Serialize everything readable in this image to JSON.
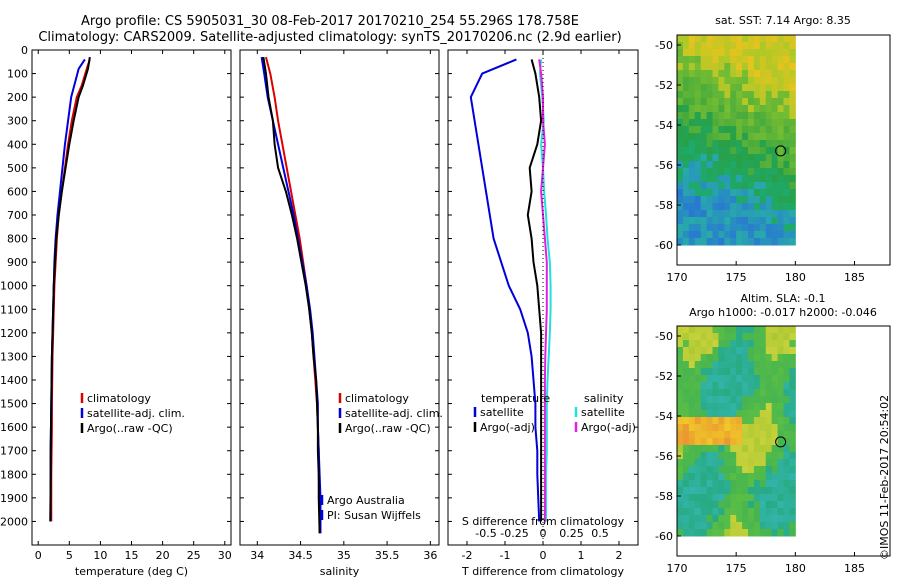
{
  "header": {
    "title_line1": "Argo profile: CS 5905031_30 08-Feb-2017 20170210_254 55.296S 178.758E",
    "title_line2": "Climatology: CARS2009. Satellite-adjusted climatology: synTS_20170206.nc (2.9d earlier)"
  },
  "credit": "©IMOS 11-Feb-2017 20:54:02",
  "colors": {
    "climatology": "#dd0000",
    "satellite": "#0000dd",
    "argo": "#000000",
    "sal_satellite": "#22e0e0",
    "sal_argo": "#e020e0"
  },
  "chart_data": [
    {
      "type": "line",
      "id": "temperature_profile",
      "xlabel": "temperature (deg C)",
      "xlim": [
        -1,
        31
      ],
      "xticks": [
        0,
        5,
        10,
        15,
        20,
        25,
        30
      ],
      "ylim": [
        2100,
        0
      ],
      "yticks": [
        0,
        100,
        200,
        300,
        400,
        500,
        600,
        700,
        800,
        900,
        1000,
        1100,
        1200,
        1300,
        1400,
        1500,
        1600,
        1700,
        1800,
        1900,
        2000
      ],
      "legend": [
        "climatology",
        "satellite-adj. clim.",
        "Argo(..raw -QC)"
      ],
      "series": [
        {
          "name": "climatology",
          "color": "#dd0000",
          "x": [
            8.3,
            7.8,
            7.0,
            6.2,
            5.4,
            4.8,
            4.3,
            3.8,
            3.3,
            3.0,
            2.8,
            2.6,
            2.5,
            2.4,
            2.3,
            2.25,
            2.2,
            2.2,
            2.15,
            2.1,
            2.1
          ],
          "y": [
            40,
            80,
            150,
            200,
            300,
            400,
            500,
            600,
            700,
            800,
            900,
            1000,
            1100,
            1200,
            1300,
            1400,
            1500,
            1600,
            1700,
            1800,
            2000
          ]
        },
        {
          "name": "satellite-adj. clim.",
          "color": "#0000dd",
          "x": [
            7.5,
            6.5,
            5.8,
            5.3,
            4.8,
            4.3,
            3.9,
            3.5,
            3.1,
            2.8,
            2.6,
            2.5,
            2.4,
            2.3,
            2.2,
            2.15,
            2.1,
            2.05,
            2.0,
            2.0,
            1.95
          ],
          "y": [
            40,
            80,
            150,
            200,
            300,
            400,
            500,
            600,
            700,
            800,
            900,
            1000,
            1100,
            1200,
            1300,
            1400,
            1500,
            1600,
            1700,
            1800,
            2000
          ]
        },
        {
          "name": "Argo(..raw -QC)",
          "color": "#000000",
          "x": [
            8.3,
            8.0,
            7.2,
            6.5,
            5.7,
            5.0,
            4.4,
            3.8,
            3.3,
            2.9,
            2.7,
            2.5,
            2.4,
            2.3,
            2.2,
            2.15,
            2.1,
            2.05,
            2.0,
            2.0,
            1.95
          ],
          "y": [
            30,
            80,
            150,
            200,
            300,
            400,
            500,
            600,
            700,
            800,
            900,
            1000,
            1100,
            1200,
            1300,
            1400,
            1500,
            1600,
            1700,
            1800,
            2000
          ]
        }
      ]
    },
    {
      "type": "line",
      "id": "salinity_profile",
      "xlabel": "salinity",
      "xlim": [
        33.8,
        36.1
      ],
      "xticks": [
        34,
        34.5,
        35,
        35.5,
        36
      ],
      "ylim": [
        2100,
        0
      ],
      "legend": [
        "climatology",
        "satellite-adj. clim.",
        "Argo(..raw -QC)"
      ],
      "annotation": [
        "Argo Australia",
        "PI: Susan Wijffels"
      ],
      "series": [
        {
          "name": "climatology",
          "color": "#dd0000",
          "x": [
            34.1,
            34.15,
            34.2,
            34.24,
            34.29,
            34.34,
            34.39,
            34.44,
            34.49,
            34.53,
            34.57,
            34.6,
            34.63,
            34.65,
            34.67,
            34.69,
            34.7,
            34.71,
            34.71,
            34.72,
            34.72
          ],
          "y": [
            30,
            100,
            200,
            300,
            400,
            500,
            600,
            700,
            800,
            900,
            1000,
            1100,
            1200,
            1300,
            1400,
            1500,
            1600,
            1700,
            1800,
            1900,
            2050
          ]
        },
        {
          "name": "satellite-adj. clim.",
          "color": "#0000dd",
          "x": [
            34.05,
            34.08,
            34.12,
            34.18,
            34.24,
            34.3,
            34.36,
            34.42,
            34.47,
            34.52,
            34.57,
            34.61,
            34.64,
            34.66,
            34.68,
            34.7,
            34.7,
            34.71,
            34.72,
            34.73,
            34.73
          ],
          "y": [
            30,
            100,
            200,
            300,
            400,
            500,
            600,
            700,
            800,
            900,
            1000,
            1100,
            1200,
            1300,
            1400,
            1500,
            1600,
            1700,
            1800,
            1900,
            2050
          ]
        },
        {
          "name": "Argo(..raw -QC)",
          "color": "#000000",
          "x": [
            34.07,
            34.1,
            34.13,
            34.18,
            34.2,
            34.24,
            34.33,
            34.4,
            34.46,
            34.51,
            34.56,
            34.6,
            34.63,
            34.65,
            34.68,
            34.69,
            34.7,
            34.7,
            34.71,
            34.71,
            34.72
          ],
          "y": [
            30,
            100,
            200,
            300,
            400,
            500,
            600,
            700,
            800,
            900,
            1000,
            1100,
            1200,
            1300,
            1400,
            1500,
            1600,
            1700,
            1800,
            1900,
            2050
          ]
        }
      ]
    },
    {
      "type": "line",
      "id": "difference_profile",
      "xlabel": "T difference from climatology",
      "xlabel_top": "S difference from climatology",
      "xlim": [
        -2.5,
        2.5
      ],
      "xticks": [
        -2,
        -1,
        0,
        1,
        2
      ],
      "xticks_top": [
        "-0.5",
        "-0.25",
        "0",
        "0.25",
        "0.5"
      ],
      "ylim": [
        2100,
        0
      ],
      "legend_headings": [
        "temperature",
        "salinity"
      ],
      "legend": [
        "satellite",
        "Argo(-adj)",
        "satellite",
        "Argo(-adj)"
      ],
      "series": [
        {
          "name": "temperature satellite",
          "color": "#0000dd",
          "x": [
            -0.7,
            -1.6,
            -1.9,
            -1.8,
            -1.7,
            -1.6,
            -1.5,
            -1.4,
            -1.3,
            -1.1,
            -0.9,
            -0.6,
            -0.4,
            -0.3,
            -0.25,
            -0.2,
            -0.2,
            -0.15,
            -0.15,
            -0.1
          ],
          "y": [
            40,
            100,
            200,
            300,
            400,
            500,
            600,
            700,
            800,
            900,
            1000,
            1100,
            1200,
            1300,
            1400,
            1500,
            1600,
            1700,
            1800,
            2000
          ]
        },
        {
          "name": "temperature Argo(-adj)",
          "color": "#000000",
          "x": [
            -0.3,
            -0.2,
            -0.1,
            -0.05,
            -0.15,
            -0.35,
            -0.3,
            -0.4,
            -0.3,
            -0.25,
            -0.15,
            -0.1,
            -0.05,
            -0.05,
            -0.05,
            -0.05,
            -0.05,
            -0.05,
            -0.05,
            -0.05
          ],
          "y": [
            40,
            100,
            200,
            300,
            400,
            500,
            600,
            700,
            800,
            900,
            1000,
            1100,
            1200,
            1300,
            1400,
            1500,
            1600,
            1700,
            1800,
            2000
          ]
        },
        {
          "name": "salinity satellite",
          "color": "#22e0e0",
          "x": [
            -0.05,
            -0.08,
            -0.02,
            0.02,
            -0.05,
            0.0,
            0.03,
            0.08,
            0.12,
            0.18,
            0.2,
            0.2,
            0.18,
            0.15,
            0.12,
            0.1,
            0.1,
            0.1,
            0.08,
            0.08
          ],
          "y": [
            40,
            100,
            200,
            300,
            400,
            500,
            600,
            700,
            800,
            900,
            1000,
            1100,
            1200,
            1300,
            1400,
            1500,
            1600,
            1700,
            1800,
            2000
          ]
        },
        {
          "name": "salinity Argo(-adj)",
          "color": "#e020e0",
          "x": [
            -0.1,
            -0.05,
            0.0,
            0.0,
            0.05,
            0.0,
            -0.05,
            0.0,
            0.05,
            0.1,
            0.1,
            0.1,
            0.08,
            0.06,
            0.05,
            0.05,
            0.05,
            0.05,
            0.05,
            0.05
          ],
          "y": [
            40,
            100,
            200,
            300,
            400,
            500,
            600,
            700,
            800,
            900,
            1000,
            1100,
            1200,
            1300,
            1400,
            1500,
            1600,
            1700,
            1800,
            2000
          ]
        }
      ]
    },
    {
      "type": "heatmap",
      "id": "sst_map",
      "title": "sat. SST: 7.14 Argo: 8.35",
      "xlim": [
        170,
        188
      ],
      "xticks": [
        170,
        175,
        180,
        185
      ],
      "ylim": [
        -61,
        -49.5
      ],
      "yticks": [
        -50,
        -52,
        -54,
        -56,
        -58,
        -60
      ],
      "data_extent": {
        "lon": [
          170,
          180
        ],
        "lat": [
          -60,
          -49.5
        ]
      },
      "marker": {
        "lon": 178.758,
        "lat": -55.296
      }
    },
    {
      "type": "heatmap",
      "id": "sla_map",
      "title": "Altim. SLA: -0.1",
      "subtitle": "Argo h1000: -0.017 h2000: -0.046",
      "xlim": [
        170,
        188
      ],
      "xticks": [
        170,
        175,
        180,
        185
      ],
      "ylim": [
        -61,
        -49.5
      ],
      "yticks": [
        -50,
        -52,
        -54,
        -56,
        -58,
        -60
      ],
      "data_extent": {
        "lon": [
          170,
          180
        ],
        "lat": [
          -60,
          -49.5
        ]
      },
      "marker": {
        "lon": 178.758,
        "lat": -55.296
      }
    }
  ]
}
